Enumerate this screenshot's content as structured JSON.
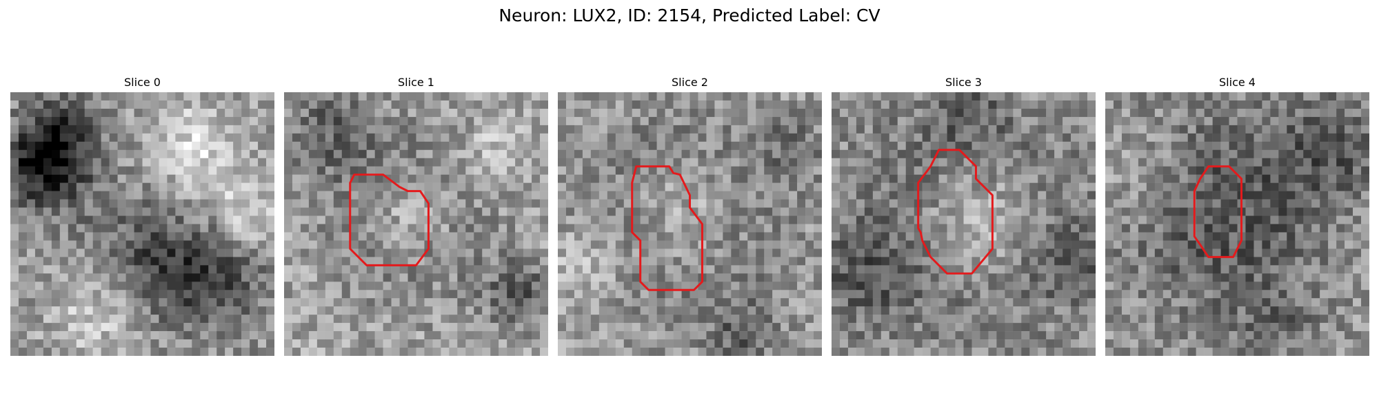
{
  "figure": {
    "title": "Neuron: LUX2, ID: 2154, Predicted Label: CV"
  },
  "panels": [
    {
      "title": "Slice 0",
      "has_contour": false
    },
    {
      "title": "Slice 1",
      "has_contour": true
    },
    {
      "title": "Slice 2",
      "has_contour": true
    },
    {
      "title": "Slice 3",
      "has_contour": true
    },
    {
      "title": "Slice 4",
      "has_contour": true
    }
  ],
  "colors": {
    "contour": "#e41a1c",
    "colormap": "grayscale"
  }
}
